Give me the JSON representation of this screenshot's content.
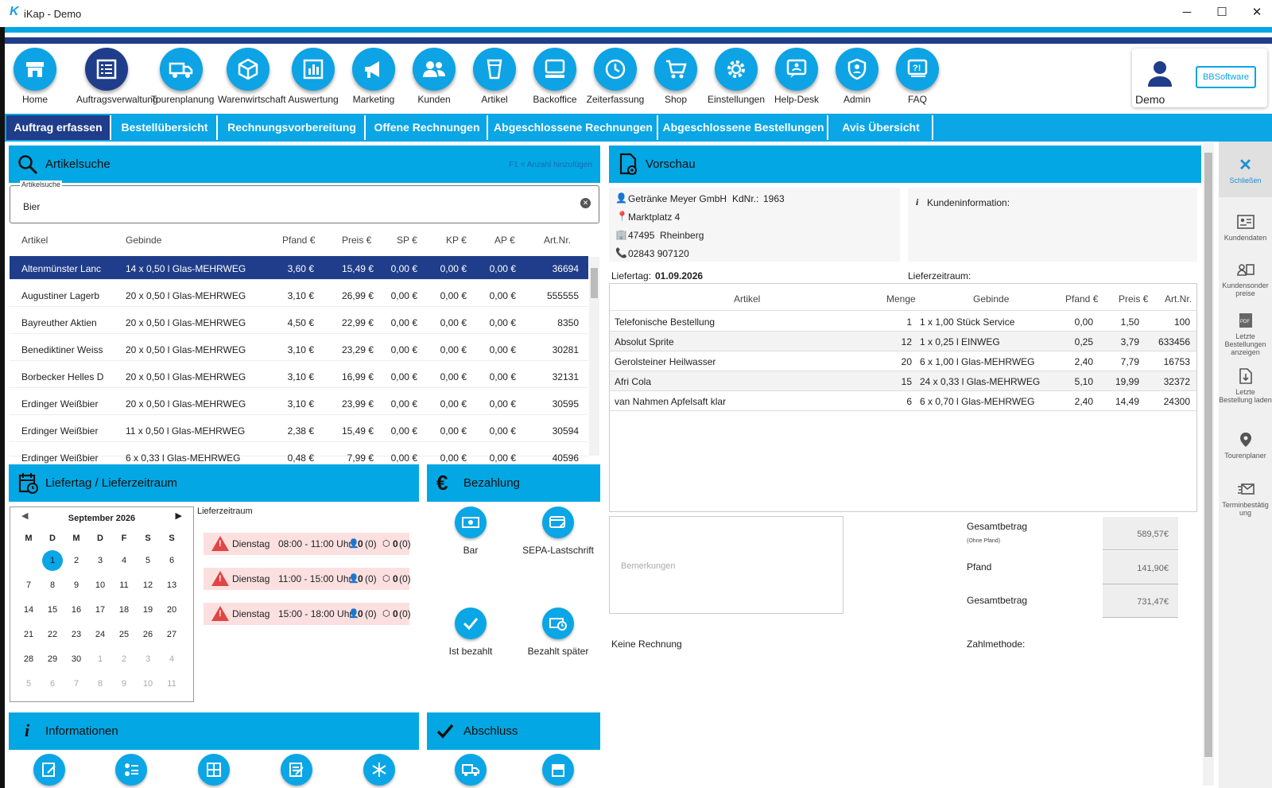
{
  "window": {
    "title": "iKap - Demo",
    "logo": "K",
    "minimize": "─",
    "maximize": "☐",
    "close": "✕"
  },
  "nav": [
    {
      "label": "Home",
      "icon": "home-icon"
    },
    {
      "label": "Auftragsverwaltung",
      "icon": "list-icon"
    },
    {
      "label": "Tourenplanung",
      "icon": "truck-icon"
    },
    {
      "label": "Warenwirtschaft",
      "icon": "box-icon"
    },
    {
      "label": "Auswertung",
      "icon": "chart-icon"
    },
    {
      "label": "Marketing",
      "icon": "megaphone-icon"
    },
    {
      "label": "Kunden",
      "icon": "people-icon"
    },
    {
      "label": "Artikel",
      "icon": "glass-icon"
    },
    {
      "label": "Backoffice",
      "icon": "computer-icon"
    },
    {
      "label": "Zeiterfassung",
      "icon": "clock-icon"
    },
    {
      "label": "Shop",
      "icon": "cart-icon"
    },
    {
      "label": "Einstellungen",
      "icon": "gear-icon"
    },
    {
      "label": "Help-Desk",
      "icon": "helpdesk-icon"
    },
    {
      "label": "Admin",
      "icon": "shield-icon"
    },
    {
      "label": "FAQ",
      "icon": "faq-icon"
    }
  ],
  "user": {
    "name": "Demo",
    "brand": "BBSoftware"
  },
  "tabs": [
    "Auftrag erfassen",
    "Bestellübersicht",
    "Rechnungsvorbereitung",
    "Offene Rechnungen",
    "Abgeschlossene Rechnungen",
    "Abgeschlossene Bestellungen",
    "Avis Übersicht"
  ],
  "artikelsuche": {
    "title": "Artikelsuche",
    "hint": "F1 = Anzahl hinzufügen",
    "field_label": "Artikelsuche",
    "value": "Bier",
    "headers": [
      "Artikel",
      "Gebinde",
      "Pfand €",
      "Preis €",
      "SP €",
      "KP €",
      "AP €",
      "Art.Nr."
    ],
    "rows": [
      [
        "Altenmünster Lanc",
        "14 x 0,50 l Glas-MEHRWEG",
        "3,60 €",
        "15,49 €",
        "0,00 €",
        "0,00 €",
        "0,00 €",
        "36694"
      ],
      [
        "Augustiner Lagerb",
        "20 x 0,50 l Glas-MEHRWEG",
        "3,10 €",
        "26,99 €",
        "0,00 €",
        "0,00 €",
        "0,00 €",
        "555555"
      ],
      [
        "Bayreuther Aktien",
        "20 x 0,50 l Glas-MEHRWEG",
        "4,50 €",
        "22,99 €",
        "0,00 €",
        "0,00 €",
        "0,00 €",
        "8350"
      ],
      [
        "Benediktiner Weiss",
        "20 x 0,50 l Glas-MEHRWEG",
        "3,10 €",
        "23,29 €",
        "0,00 €",
        "0,00 €",
        "0,00 €",
        "30281"
      ],
      [
        "Borbecker Helles D",
        "20 x 0,50 l Glas-MEHRWEG",
        "3,10 €",
        "16,99 €",
        "0,00 €",
        "0,00 €",
        "0,00 €",
        "32131"
      ],
      [
        "Erdinger Weißbier",
        "20 x 0,50 l Glas-MEHRWEG",
        "3,10 €",
        "23,99 €",
        "0,00 €",
        "0,00 €",
        "0,00 €",
        "30595"
      ],
      [
        "Erdinger Weißbier",
        "11 x 0,50 l Glas-MEHRWEG",
        "2,38 €",
        "15,49 €",
        "0,00 €",
        "0,00 €",
        "0,00 €",
        "30594"
      ],
      [
        "Erdinger Weißbier",
        "6 x 0,33 l Glas-MEHRWEG",
        "0,48 €",
        "7,99 €",
        "0,00 €",
        "0,00 €",
        "0,00 €",
        "40596"
      ]
    ]
  },
  "liefertag": {
    "title": "Liefertag / Lieferzeitraum",
    "month": "September 2026",
    "weekdays": [
      "M",
      "D",
      "M",
      "D",
      "F",
      "S",
      "S"
    ],
    "days": [
      [
        "1",
        "2",
        "3",
        "4",
        "5",
        "6"
      ],
      [
        "7",
        "8",
        "9",
        "10",
        "11",
        "12",
        "13"
      ],
      [
        "14",
        "15",
        "16",
        "17",
        "18",
        "19",
        "20"
      ],
      [
        "21",
        "22",
        "23",
        "24",
        "25",
        "26",
        "27"
      ],
      [
        "28",
        "29",
        "30",
        "1",
        "2",
        "3",
        "4"
      ],
      [
        "5",
        "6",
        "7",
        "8",
        "9",
        "10",
        "11"
      ]
    ],
    "selected_day": "1",
    "zeitraum_label": "Lieferzeitraum",
    "slots": [
      {
        "day": "Dienstag",
        "time": "08:00 - 11:00 Uhr",
        "persons": "0",
        "persons_paren": "(0)",
        "boxes": "0",
        "boxes_paren": "(0)"
      },
      {
        "day": "Dienstag",
        "time": "11:00 - 15:00 Uhr",
        "persons": "0",
        "persons_paren": "(0)",
        "boxes": "0",
        "boxes_paren": "(0)"
      },
      {
        "day": "Dienstag",
        "time": "15:00 - 18:00 Uhr",
        "persons": "0",
        "persons_paren": "(0)",
        "boxes": "0",
        "boxes_paren": "(0)"
      }
    ]
  },
  "bezahlung": {
    "title": "Bezahlung",
    "options": [
      "Bar",
      "SEPA-Lastschrift",
      "Ist bezahlt",
      "Bezahlt später"
    ]
  },
  "informationen": {
    "title": "Informationen"
  },
  "abschluss": {
    "title": "Abschluss"
  },
  "vorschau": {
    "title": "Vorschau",
    "customer": "Getränke Meyer GmbH",
    "kdnr_label": "KdNr.:",
    "kdnr": "1963",
    "street": "Marktplatz 4",
    "zip": "47495",
    "city": "Rheinberg",
    "phone": "02843 907120",
    "kundeninfo_label": "Kundeninformation:",
    "liefertag_label": "Liefertag:",
    "liefertag": "01.09.2026",
    "lieferzeitraum_label": "Lieferzeitraum:",
    "headers": [
      "Artikel",
      "Menge",
      "Gebinde",
      "Pfand €",
      "Preis €",
      "Art.Nr."
    ],
    "rows": [
      [
        "Telefonische Bestellung",
        "1",
        "1 x 1,00 Stück Service",
        "0,00",
        "1,50",
        "100"
      ],
      [
        "Absolut Sprite",
        "12",
        "1 x 0,25 l EINWEG",
        "0,25",
        "3,79",
        "633456"
      ],
      [
        "Gerolsteiner Heilwasser",
        "20",
        "6 x 1,00 l Glas-MEHRWEG",
        "2,40",
        "7,79",
        "16753"
      ],
      [
        "Afri Cola",
        "15",
        "24 x 0,33 l Glas-MEHRWEG",
        "5,10",
        "19,99",
        "32372"
      ],
      [
        "van Nahmen Apfelsaft klar",
        "6",
        "6 x 0,70 l Glas-MEHRWEG",
        "2,40",
        "14,49",
        "24300"
      ]
    ],
    "remarks_placeholder": "Bemerkungen",
    "gesamt_label": "Gesamtbetrag",
    "gesamt_sub": "(Ohne Pfand)",
    "gesamt_value": "589,57€",
    "pfand_label": "Pfand",
    "pfand_value": "141,90€",
    "gesamt2_label": "Gesamtbetrag",
    "gesamt2_value": "731,47€",
    "keine_rechnung": "Keine Rechnung",
    "zahlmethode_label": "Zahlmethode:"
  },
  "sidebar": [
    {
      "label": "Schließen",
      "icon": "close-icon"
    },
    {
      "label": "Kundendaten",
      "icon": "id-card-icon"
    },
    {
      "label": "Kundensonder preise",
      "icon": "customer-price-icon"
    },
    {
      "label": "Letzte Bestellungen anzeigen",
      "icon": "pdf-icon"
    },
    {
      "label": "Letzte Bestellung laden",
      "icon": "download-file-icon"
    },
    {
      "label": "Tourenplaner",
      "icon": "map-pin-icon"
    },
    {
      "label": "Terminbestätig ung",
      "icon": "mail-icon"
    }
  ],
  "colors": {
    "accent": "#03a7e3",
    "dark": "#1f3d8a"
  }
}
